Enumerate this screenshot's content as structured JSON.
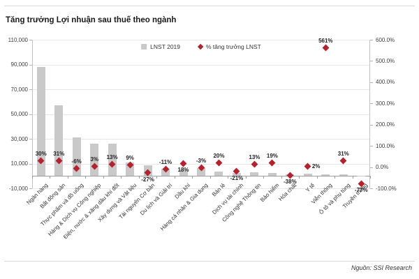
{
  "header": {
    "title": "Tăng trưởng Lợi nhuận sau thuế theo ngành"
  },
  "footer": {
    "source": "Nguồn: SSI Research"
  },
  "chart_data": {
    "type": "bar",
    "subtype": "combo-bar-with-diamond-markers",
    "title": "Tăng trưởng Lợi nhuận sau thuế theo ngành",
    "grid": true,
    "legend_position": "top-center",
    "categories": [
      "Ngân hàng",
      "Bất động sản",
      "Thực phẩm và đồ uống",
      "Hàng & Dịch vụ Công nghiệp",
      "Điện, nước & xăng dầu khí đốt",
      "Xây dựng và Vật liệu",
      "Tài nguyên Cơ bản",
      "Du lịch và Giải trí",
      "Dầu khí",
      "Hàng cá nhân & Gia dụng",
      "Bán lẻ",
      "Dịch vụ tài chính",
      "Công nghệ Thông tin",
      "Bảo hiểm",
      "Hóa chất",
      "Y tế",
      "Viễn thông",
      "Ô tô và phụ tùng",
      "Truyền thông"
    ],
    "series": [
      {
        "name": "LNST 2019",
        "type": "bar",
        "axis": "left",
        "color": "#c9c9c9",
        "values": [
          88000,
          57000,
          31000,
          26000,
          26000,
          11000,
          8500,
          6000,
          5000,
          6500,
          3500,
          2500,
          3000,
          2500,
          1200,
          1800,
          1500,
          1000,
          300
        ]
      },
      {
        "name": "% tăng trưởng LNST",
        "type": "scatter",
        "marker": "diamond",
        "axis": "right",
        "color": "#b2232e",
        "values": [
          30,
          31,
          -6,
          3,
          13,
          9,
          -27,
          -11,
          18,
          -3,
          20,
          -21,
          13,
          19,
          -38,
          2,
          561,
          31,
          -77
        ],
        "labels": [
          "30%",
          "31%",
          "-6%",
          "3%",
          "13%",
          "9%",
          "-27%",
          "-11%",
          "18%",
          "-3%",
          "20%",
          "-21%",
          "13%",
          "19%",
          "-38%",
          "2%",
          "561%",
          "31%",
          "-77%"
        ],
        "label_positions": [
          "above",
          "above",
          "above",
          "above",
          "above",
          "above",
          "below",
          "above",
          "below",
          "above",
          "above",
          "below",
          "above",
          "above",
          "below",
          "right",
          "above",
          "above",
          "below"
        ]
      }
    ],
    "left_axis": {
      "min": -10000,
      "max": 110000,
      "tick_step": 20000,
      "ticks": [
        "110,000",
        "90,000",
        "70,000",
        "50,000",
        "30,000",
        "10,000",
        "-10,000"
      ]
    },
    "right_axis": {
      "min": -100,
      "max": 600,
      "tick_step": 100,
      "ticks": [
        "600.0%",
        "500.0%",
        "400.0%",
        "300.0%",
        "200.0%",
        "100.0%",
        "0.0%",
        "-100.0%"
      ]
    },
    "legend": [
      {
        "label": "LNST 2019",
        "marker": "square",
        "color": "#c9c9c9"
      },
      {
        "label": "% tăng trưởng LNST",
        "marker": "diamond",
        "color": "#b2232e"
      }
    ]
  }
}
